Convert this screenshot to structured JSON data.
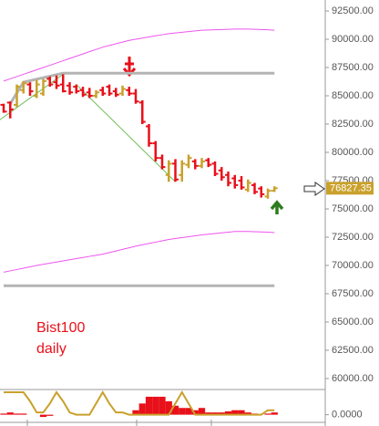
{
  "chart_data": {
    "type": "ohlc",
    "annotations": [
      "Bist100",
      "daily"
    ],
    "up_color": "#c9a12c",
    "down_color": "#e8101a",
    "open": [
      84200,
      84400,
      84200,
      85500,
      86000,
      85000,
      85200,
      86500,
      86200,
      86000,
      85900,
      85800,
      85500,
      85300,
      85000,
      85500,
      85800,
      85400,
      85200,
      85500,
      85200,
      84400,
      82300,
      80800,
      79500,
      78000,
      79000,
      78000,
      78900,
      79200,
      78800,
      79300,
      79000,
      78400,
      78000,
      77700,
      77500,
      76700,
      77100,
      76800,
      76100,
      76600
    ],
    "high": [
      84300,
      84500,
      86000,
      86300,
      86200,
      86400,
      86500,
      86700,
      86800,
      86900,
      86200,
      86000,
      85800,
      85700,
      85500,
      85800,
      86000,
      85700,
      85900,
      85800,
      85600,
      84600,
      82500,
      81000,
      79800,
      79300,
      79400,
      79300,
      79800,
      79400,
      79500,
      79500,
      79200,
      78700,
      78300,
      78000,
      77900,
      77600,
      77300,
      77000,
      76800,
      77000
    ],
    "low": [
      83500,
      83000,
      84000,
      85200,
      85000,
      84800,
      85000,
      85800,
      85600,
      85300,
      85100,
      85200,
      84900,
      84800,
      84800,
      85000,
      85000,
      84900,
      85000,
      85000,
      84300,
      82500,
      80500,
      79200,
      78500,
      77400,
      77400,
      77400,
      78600,
      78500,
      78600,
      78700,
      77900,
      77500,
      77000,
      76800,
      76700,
      76500,
      76300,
      76000,
      75900,
      76500
    ],
    "close": [
      83600,
      83800,
      85800,
      86100,
      85400,
      86000,
      86300,
      86000,
      85900,
      85400,
      85300,
      85400,
      85100,
      85000,
      85300,
      85200,
      85200,
      85100,
      85600,
      85200,
      84500,
      82700,
      80800,
      79500,
      78700,
      79000,
      77600,
      79000,
      79500,
      78800,
      79200,
      78900,
      78100,
      77800,
      77300,
      77100,
      76900,
      77300,
      76500,
      76300,
      76600,
      76827.35
    ],
    "bands": [
      {
        "color": "#ee55ee",
        "values": [
          86300,
          86500,
          86700,
          86900,
          87100,
          87300,
          87500,
          87700,
          87900,
          88100,
          88300,
          88500,
          88700,
          88900,
          89100,
          89300,
          89450,
          89600,
          89750,
          89900,
          90000,
          90100,
          90200,
          90300,
          90400,
          90500,
          90560,
          90620,
          90680,
          90740,
          90800,
          90820,
          90840,
          90860,
          90880,
          90900,
          90900,
          90900,
          90880,
          90860,
          90840,
          90800
        ]
      },
      {
        "color": "#ee55ee",
        "values": [
          69400,
          69520,
          69640,
          69760,
          69880,
          70000,
          70100,
          70200,
          70300,
          70400,
          70500,
          70600,
          70700,
          70800,
          70900,
          71000,
          71140,
          71280,
          71420,
          71560,
          71700,
          71820,
          71940,
          72060,
          72180,
          72300,
          72380,
          72460,
          72540,
          72620,
          72700,
          72760,
          72820,
          72880,
          72940,
          73000,
          73000,
          73000,
          72980,
          72960,
          72940,
          72900
        ]
      }
    ],
    "lines": [
      {
        "color": "#b4b4b4",
        "width": 3,
        "x": [
          1,
          3,
          9,
          41
        ],
        "values": [
          84300,
          86200,
          87000,
          87000
        ]
      },
      {
        "color": "#b4b4b4",
        "width": 3,
        "x": [
          0,
          41
        ],
        "values": [
          68200,
          68200
        ]
      },
      {
        "color": "#6fbf5a",
        "width": 1,
        "x": [
          -1,
          9
        ],
        "values": [
          82700,
          86900
        ]
      },
      {
        "color": "#6fbf5a",
        "width": 1,
        "x": [
          11,
          26
        ],
        "values": [
          86000,
          77400
        ]
      }
    ],
    "ylim": [
      59190,
      93470
    ],
    "yticks": [
      {
        "value": 92500,
        "label": "92500.00"
      },
      {
        "value": 90000,
        "label": "90000.00"
      },
      {
        "value": 87500,
        "label": "87500.00"
      },
      {
        "value": 85000,
        "label": "85000.00"
      },
      {
        "value": 82500,
        "label": "82500.00"
      },
      {
        "value": 80000,
        "label": "80000.00"
      },
      {
        "value": 77500,
        "label": "77500.00"
      },
      {
        "value": 75000,
        "label": "75000.00"
      },
      {
        "value": 72500,
        "label": "72500.00"
      },
      {
        "value": 70000,
        "label": "70000.00"
      },
      {
        "value": 67500,
        "label": "67500.00"
      },
      {
        "value": 65000,
        "label": "65000.00"
      },
      {
        "value": 62500,
        "label": "62500.00"
      },
      {
        "value": 60000,
        "label": "60000.00"
      }
    ],
    "indicator": {
      "ylim": [
        -0.3,
        1
      ],
      "yticks": [
        {
          "value": 0,
          "label": "0.0000"
        }
      ],
      "line": {
        "color": "#c9a12c",
        "values": [
          1,
          1,
          1,
          1,
          0.6,
          0.1,
          0.1,
          0.5,
          1,
          0.6,
          0.1,
          0,
          0,
          0,
          0.5,
          1,
          0.5,
          0.1,
          0.1,
          0,
          0,
          0,
          0,
          0,
          0,
          0,
          0.5,
          1,
          0.5,
          0,
          0,
          0,
          0,
          0,
          0,
          0,
          0,
          0,
          0,
          0,
          0.2,
          0.2
        ]
      },
      "histogram": {
        "color": "#e8101a",
        "values": [
          0.05,
          0.1,
          0.05,
          0.05,
          0,
          0,
          -0.1,
          -0.05,
          0,
          0,
          0,
          0,
          0,
          0,
          0,
          0,
          0,
          0,
          0,
          0,
          0.2,
          0.5,
          0.8,
          0.8,
          0.8,
          0.6,
          0.4,
          0.3,
          0.3,
          0.2,
          0.3,
          0.1,
          0.1,
          0.1,
          0.15,
          0.2,
          0.2,
          0.1,
          0.05,
          0,
          0.05,
          0.1
        ]
      }
    }
  }
}
